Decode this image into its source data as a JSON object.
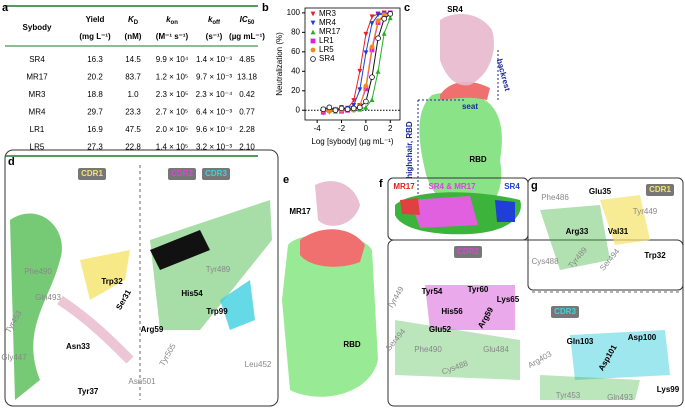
{
  "panel_a": {
    "label": "a",
    "columns": [
      {
        "name": "Sybody"
      },
      {
        "name": "Yield",
        "unit": "(mg L⁻¹)"
      },
      {
        "name": "K",
        "sub": "D",
        "unit": "(nM)"
      },
      {
        "name": "k",
        "sub": "on",
        "unit": "(M⁻¹ s⁻¹)"
      },
      {
        "name": "k",
        "sub": "off",
        "unit": "(s⁻¹)"
      },
      {
        "name": "IC",
        "sub": "50",
        "unit": "(µg mL⁻¹)"
      }
    ],
    "rows": [
      [
        "SR4",
        "16.3",
        "14.5",
        "9.9 × 10⁴",
        "1.4 × 10⁻³",
        "4.85"
      ],
      [
        "MR17",
        "20.2",
        "83.7",
        "1.2 × 10⁵",
        "9.7 × 10⁻³",
        "13.18"
      ],
      [
        "MR3",
        "18.8",
        "1.0",
        "2.3 × 10⁵",
        "2.3 × 10⁻⁴",
        "0.42"
      ],
      [
        "MR4",
        "29.7",
        "23.3",
        "2.7 × 10⁵",
        "6.4 × 10⁻³",
        "0.77"
      ],
      [
        "LR1",
        "16.9",
        "47.5",
        "2.0 × 10⁵",
        "9.6 × 10⁻³",
        "2.28"
      ],
      [
        "LR5",
        "27.3",
        "22.8",
        "1.4 × 10⁵",
        "3.2 × 10⁻³",
        "2.10"
      ]
    ]
  },
  "chart_data": {
    "type": "line",
    "panel_label": "b",
    "x_label": "Log [sybody]  (µg mL⁻¹)",
    "y_label": "Neutralization (%)",
    "x": [
      -3.5,
      -3,
      -2.5,
      -2,
      -1.5,
      -1,
      -0.5,
      0,
      0.5,
      1,
      1.5,
      2
    ],
    "series": [
      {
        "name": "MR3",
        "color": "#e8202a",
        "marker": "triangle-down",
        "values": [
          -3,
          2,
          0,
          3,
          2,
          10,
          40,
          78,
          96,
          99,
          100,
          100
        ]
      },
      {
        "name": "MR4",
        "color": "#1f3fd6",
        "marker": "triangle-down",
        "values": [
          1,
          -2,
          0,
          1,
          2,
          5,
          21,
          59,
          89,
          98,
          99,
          100
        ]
      },
      {
        "name": "MR17",
        "color": "#22b022",
        "marker": "triangle-up",
        "values": [
          0,
          1,
          -1,
          0,
          1,
          2,
          1,
          3,
          11,
          40,
          79,
          95
        ]
      },
      {
        "name": "LR1",
        "color": "#e020e0",
        "marker": "square",
        "values": [
          -2,
          0,
          1,
          -1,
          0,
          1,
          5,
          22,
          62,
          90,
          98,
          100
        ]
      },
      {
        "name": "LR5",
        "color": "#f08a1c",
        "marker": "circle",
        "values": [
          0,
          -1,
          1,
          0,
          1,
          0,
          4,
          25,
          65,
          92,
          98,
          99
        ]
      },
      {
        "name": "SR4",
        "color": "#111111",
        "marker": "open-circle",
        "values": [
          1,
          3,
          0,
          2,
          1,
          2,
          3,
          9,
          34,
          74,
          94,
          99
        ]
      }
    ],
    "xlim": [
      -5,
      2.8
    ],
    "xticks": [
      -4,
      -2,
      0,
      2
    ],
    "ylim": [
      -10,
      105
    ],
    "yticks": [
      0,
      20,
      40,
      60,
      80,
      100
    ],
    "hline": 0,
    "legend": "upper-left"
  },
  "panel_c": {
    "label": "c",
    "texts": [
      "SR4",
      "backrest",
      "seat",
      "highchair, RBD",
      "RBD"
    ]
  },
  "panel_d": {
    "label": "d",
    "boxes": [
      "CDR1",
      "CDR2",
      "CDR3"
    ],
    "residues": [
      "Phe490",
      "Trp32",
      "Gln493",
      "Ser31",
      "Tyr453",
      "Asn33",
      "Gly447",
      "Tyr37",
      "Tyr489",
      "His54",
      "Trp99",
      "Arg59",
      "Tyr505",
      "Asn501",
      "Leu452"
    ]
  },
  "panel_e": {
    "label": "e",
    "texts": [
      "MR17",
      "RBD"
    ]
  },
  "panel_f": {
    "label": "f",
    "texts": [
      "MR17",
      "SR4 & MR17",
      "SR4"
    ]
  },
  "panel_g": {
    "label": "g",
    "boxes": [
      "CDR1",
      "CDR2",
      "CDR3"
    ],
    "residues": [
      "Phe486",
      "Glu35",
      "Tyr449",
      "Arg33",
      "Val31",
      "Cys488",
      "Tyr489",
      "Ser494",
      "Trp32",
      "Tyr54",
      "His56",
      "Tyr60",
      "Lys65",
      "Arg59",
      "Glu52",
      "Tyr449",
      "Ser494",
      "Phe490",
      "Glu484",
      "Cys488",
      "Gln103",
      "Asp100",
      "Asp101",
      "Arg403",
      "Lys99",
      "Tyr453",
      "Gln493"
    ]
  }
}
